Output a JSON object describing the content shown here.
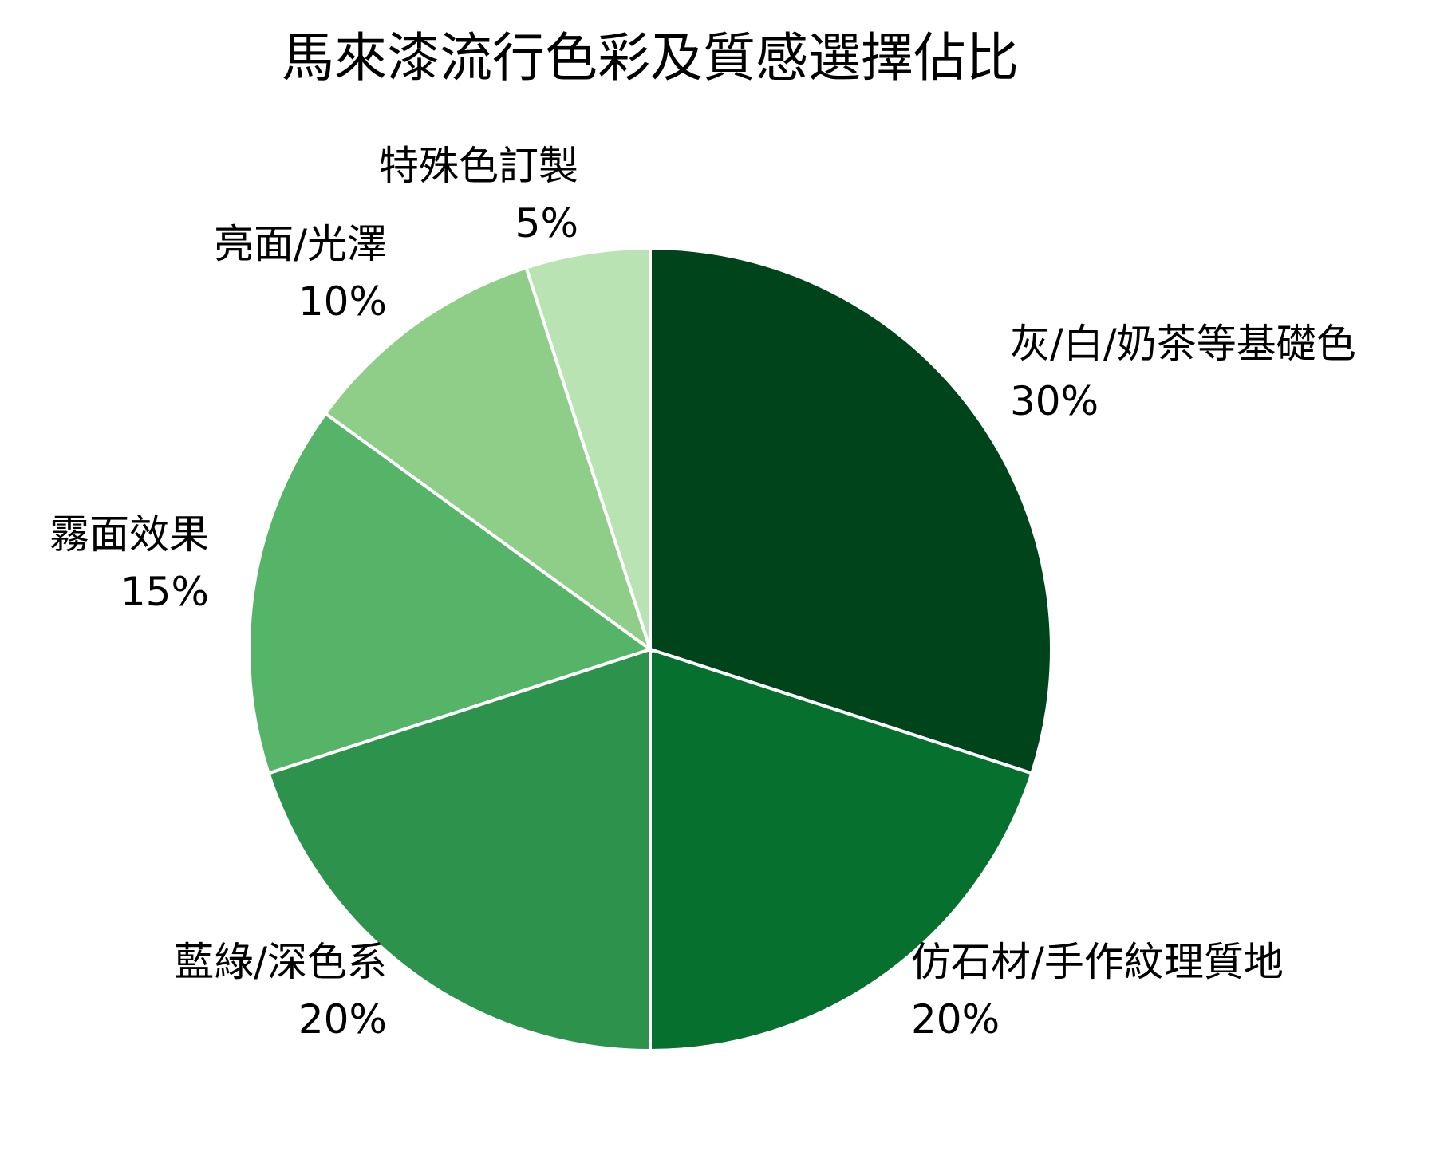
{
  "chart_data": {
    "type": "pie",
    "title": "馬來漆流行色彩及質感選擇佔比",
    "start": "top",
    "direction": "clockwise",
    "slices": [
      {
        "label": "灰/白/奶茶等基礎色",
        "value": 30,
        "value_label": "30%",
        "color": "#00441b"
      },
      {
        "label": "仿石材/手作紋理質地",
        "value": 20,
        "value_label": "20%",
        "color": "#06702f"
      },
      {
        "label": "藍綠/深色系",
        "value": 20,
        "value_label": "20%",
        "color": "#2d934c"
      },
      {
        "label": "霧面效果",
        "value": 15,
        "value_label": "15%",
        "color": "#56b468"
      },
      {
        "label": "亮面/光澤",
        "value": 10,
        "value_label": "10%",
        "color": "#8fce89"
      },
      {
        "label": "特殊色訂製",
        "value": 5,
        "value_label": "5%",
        "color": "#b9e3b3"
      }
    ],
    "legend": "none",
    "slice_border_color": "#ffffff"
  }
}
